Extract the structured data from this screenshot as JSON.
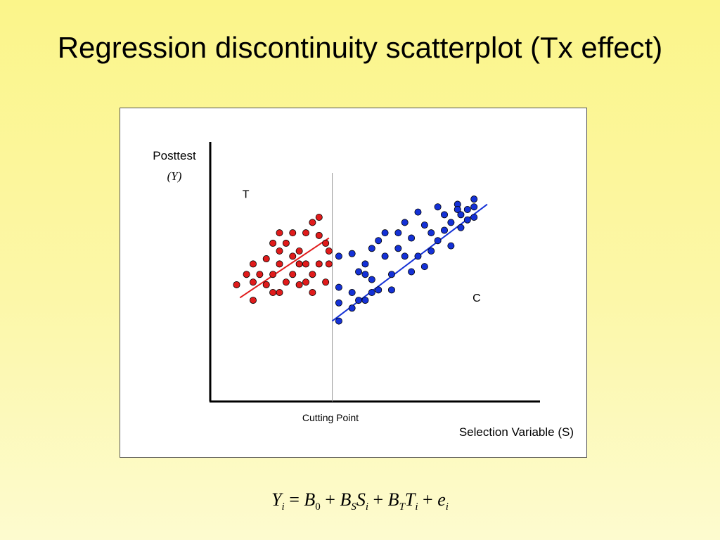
{
  "title": "Regression discontinuity scatterplot (Tx effect)",
  "formula": "Y_i = B_0 + B_S S_i + B_T T_i + e_i",
  "chart_data": {
    "type": "scatter",
    "title": "",
    "ylabel_line1": "Posttest",
    "ylabel_line2": "(Y)",
    "xlabel": "Selection Variable (S)",
    "cutoff_label": "Cutting Point",
    "cutoff_x": 0.37,
    "xlim": [
      0,
      1
    ],
    "ylim": [
      0,
      1
    ],
    "grid": false,
    "annotations": [
      {
        "text": "T",
        "x": 0.108,
        "y": 0.784
      },
      {
        "text": "C",
        "x": 0.808,
        "y": 0.385
      }
    ],
    "series": [
      {
        "color": "#e01b1b",
        "points": [
          [
            0.33,
            0.64
          ],
          [
            0.35,
            0.61
          ],
          [
            0.36,
            0.58
          ],
          [
            0.33,
            0.53
          ],
          [
            0.36,
            0.53
          ],
          [
            0.35,
            0.46
          ],
          [
            0.31,
            0.49
          ],
          [
            0.29,
            0.53
          ],
          [
            0.31,
            0.42
          ],
          [
            0.27,
            0.53
          ],
          [
            0.25,
            0.49
          ],
          [
            0.23,
            0.46
          ],
          [
            0.27,
            0.45
          ],
          [
            0.25,
            0.56
          ],
          [
            0.21,
            0.53
          ],
          [
            0.21,
            0.42
          ],
          [
            0.21,
            0.58
          ],
          [
            0.27,
            0.58
          ],
          [
            0.29,
            0.46
          ],
          [
            0.19,
            0.42
          ],
          [
            0.17,
            0.45
          ],
          [
            0.13,
            0.46
          ],
          [
            0.13,
            0.39
          ],
          [
            0.11,
            0.49
          ],
          [
            0.15,
            0.49
          ],
          [
            0.17,
            0.55
          ],
          [
            0.19,
            0.49
          ],
          [
            0.13,
            0.53
          ],
          [
            0.23,
            0.61
          ],
          [
            0.21,
            0.65
          ],
          [
            0.25,
            0.65
          ],
          [
            0.29,
            0.65
          ],
          [
            0.31,
            0.69
          ],
          [
            0.33,
            0.71
          ],
          [
            0.08,
            0.45
          ],
          [
            0.19,
            0.61
          ]
        ],
        "fit": [
          [
            0.09,
            0.4
          ],
          [
            0.36,
            0.63
          ]
        ]
      },
      {
        "color": "#1431d6",
        "points": [
          [
            0.39,
            0.31
          ],
          [
            0.39,
            0.38
          ],
          [
            0.39,
            0.44
          ],
          [
            0.39,
            0.56
          ],
          [
            0.43,
            0.42
          ],
          [
            0.43,
            0.57
          ],
          [
            0.45,
            0.39
          ],
          [
            0.45,
            0.5
          ],
          [
            0.47,
            0.53
          ],
          [
            0.47,
            0.39
          ],
          [
            0.49,
            0.59
          ],
          [
            0.49,
            0.47
          ],
          [
            0.51,
            0.43
          ],
          [
            0.51,
            0.62
          ],
          [
            0.53,
            0.56
          ],
          [
            0.53,
            0.65
          ],
          [
            0.55,
            0.49
          ],
          [
            0.55,
            0.43
          ],
          [
            0.57,
            0.65
          ],
          [
            0.57,
            0.59
          ],
          [
            0.59,
            0.69
          ],
          [
            0.59,
            0.56
          ],
          [
            0.61,
            0.63
          ],
          [
            0.61,
            0.5
          ],
          [
            0.63,
            0.56
          ],
          [
            0.63,
            0.73
          ],
          [
            0.65,
            0.68
          ],
          [
            0.65,
            0.52
          ],
          [
            0.67,
            0.65
          ],
          [
            0.67,
            0.58
          ],
          [
            0.69,
            0.75
          ],
          [
            0.69,
            0.62
          ],
          [
            0.71,
            0.72
          ],
          [
            0.71,
            0.66
          ],
          [
            0.73,
            0.69
          ],
          [
            0.73,
            0.6
          ],
          [
            0.75,
            0.76
          ],
          [
            0.75,
            0.74
          ],
          [
            0.76,
            0.67
          ],
          [
            0.76,
            0.72
          ],
          [
            0.78,
            0.74
          ],
          [
            0.78,
            0.7
          ],
          [
            0.8,
            0.78
          ],
          [
            0.8,
            0.75
          ],
          [
            0.8,
            0.71
          ],
          [
            0.47,
            0.49
          ],
          [
            0.49,
            0.42
          ],
          [
            0.43,
            0.36
          ]
        ],
        "fit": [
          [
            0.37,
            0.31
          ],
          [
            0.84,
            0.76
          ]
        ]
      }
    ]
  }
}
